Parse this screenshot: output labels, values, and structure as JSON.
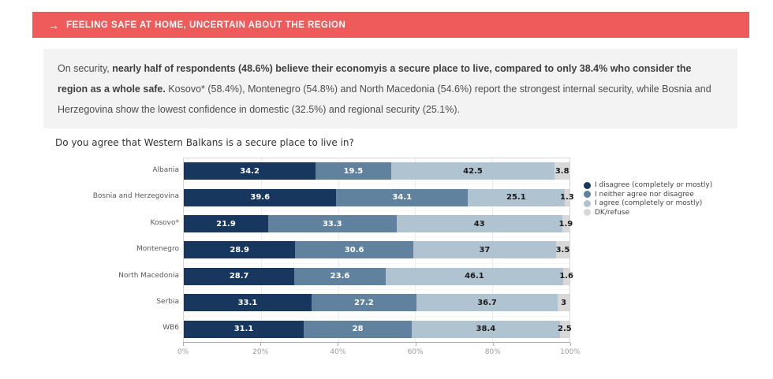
{
  "banner": {
    "arrow": "→",
    "title": "FEELING SAFE AT HOME, UNCERTAIN ABOUT THE REGION",
    "bg_color": "#EF5B5B"
  },
  "summary": {
    "segments": [
      {
        "text": "On security, ",
        "bold": false
      },
      {
        "text": "nearly half of respondents (48.6%) believe their economyis a secure place to live, compared to only 38.4% who consider the region as a whole safe.",
        "bold": true
      },
      {
        "text": " Kosovo* (58.4%), Montenegro (54.8%) and North Macedonia (54.6%) report the strongest internal security, while Bosnia and Herzegovina show the lowest confidence in domestic (32.5%) and regional security (25.1%).",
        "bold": false
      }
    ]
  },
  "chart_data": {
    "type": "bar",
    "orientation": "horizontal",
    "stacked": true,
    "title": "Do you agree that Western Balkans is a secure place to live in?",
    "categories": [
      "Albania",
      "Bosnia and Herzegovina",
      "Kosovo*",
      "Montenegro",
      "North Macedonia",
      "Serbia",
      "WB6"
    ],
    "series": [
      {
        "name": "I disagree (completely or mostly)",
        "color": "#17375E",
        "label_color": "#ffffff",
        "values": [
          34.2,
          39.6,
          21.9,
          28.9,
          28.7,
          33.1,
          31.1
        ]
      },
      {
        "name": "I neither agree nor disagree",
        "color": "#61829F",
        "label_color": "#ffffff",
        "values": [
          19.5,
          34.1,
          33.3,
          30.6,
          23.6,
          27.2,
          28
        ]
      },
      {
        "name": "I agree (completely or mostly)",
        "color": "#B0C3D1",
        "label_color": "#1a1a1a",
        "values": [
          42.5,
          25.1,
          43,
          37,
          46.1,
          36.7,
          38.4
        ]
      },
      {
        "name": "DK/refuse",
        "color": "#D8D8D8",
        "label_color": "#1a1a1a",
        "values": [
          3.8,
          1.3,
          1.9,
          3.5,
          1.6,
          3,
          2.5
        ]
      }
    ],
    "x_ticks": [
      "0%",
      "20%",
      "40%",
      "60%",
      "80%",
      "100%"
    ],
    "xlim": [
      0,
      100
    ],
    "grid": true,
    "legend_position": "right"
  }
}
